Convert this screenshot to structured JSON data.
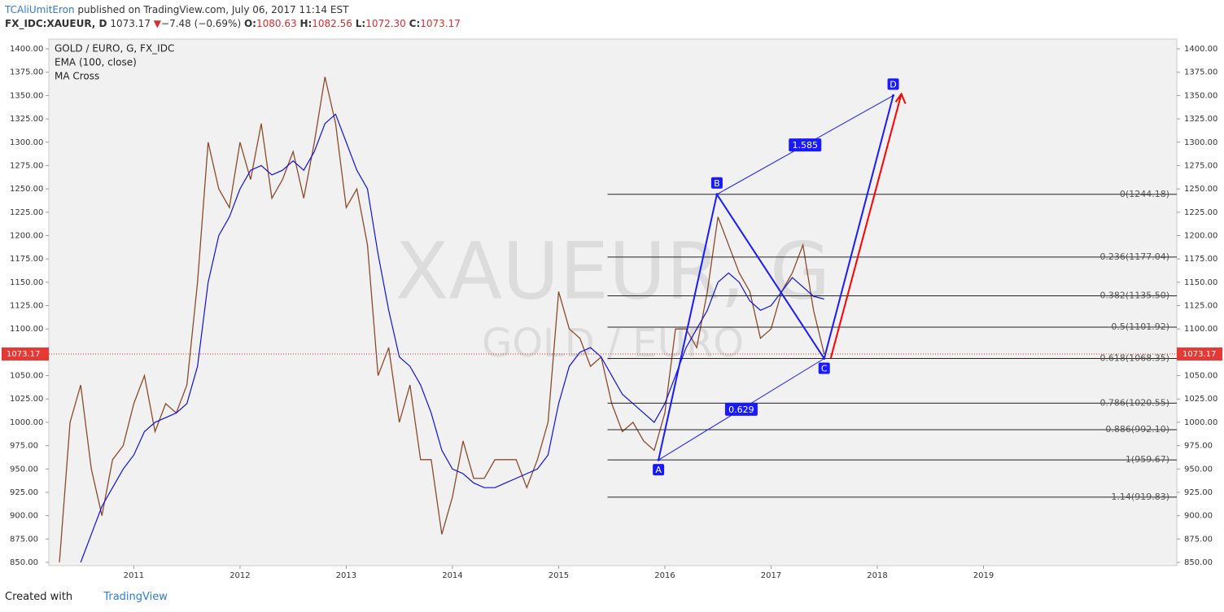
{
  "header": {
    "author": "TCAliUmitEron",
    "published": "published on TradingView.com, July 06, 2017 11:14 EST",
    "symbol": "FX_IDC:XAUEUR, D",
    "price": "1073.17",
    "change": "−7.48 (−0.69%)",
    "o_label": "O:",
    "o": "1080.63",
    "h_label": "H:",
    "h": "1082.56",
    "l_label": "L:",
    "l": "1072.30",
    "c_label": "C:",
    "c": "1073.17"
  },
  "footer": {
    "created": "Created with",
    "brand": "TradingView"
  },
  "chart_data": {
    "type": "line",
    "title": "GOLD / EURO, G, FX_IDC",
    "indicators": [
      "EMA (100, close)",
      "MA Cross"
    ],
    "watermark": [
      "XAUEUR, G",
      "GOLD / EURO"
    ],
    "x": [
      2010.3,
      2010.4,
      2010.5,
      2010.6,
      2010.7,
      2010.8,
      2010.9,
      2011.0,
      2011.1,
      2011.2,
      2011.3,
      2011.4,
      2011.5,
      2011.6,
      2011.7,
      2011.8,
      2011.9,
      2012.0,
      2012.1,
      2012.2,
      2012.3,
      2012.4,
      2012.5,
      2012.6,
      2012.7,
      2012.8,
      2012.9,
      2013.0,
      2013.1,
      2013.2,
      2013.3,
      2013.4,
      2013.5,
      2013.6,
      2013.7,
      2013.8,
      2013.9,
      2014.0,
      2014.1,
      2014.2,
      2014.3,
      2014.4,
      2014.5,
      2014.6,
      2014.7,
      2014.8,
      2014.9,
      2015.0,
      2015.1,
      2015.2,
      2015.3,
      2015.4,
      2015.5,
      2015.6,
      2015.7,
      2015.8,
      2015.9,
      2016.0,
      2016.1,
      2016.2,
      2016.3,
      2016.4,
      2016.5,
      2016.6,
      2016.7,
      2016.8,
      2016.9,
      2017.0,
      2017.1,
      2017.2,
      2017.3,
      2017.4,
      2017.5
    ],
    "price": {
      "color": "#8b4a2b",
      "values": [
        850,
        1000,
        1040,
        950,
        900,
        960,
        975,
        1020,
        1050,
        990,
        1020,
        1010,
        1040,
        1150,
        1300,
        1250,
        1230,
        1300,
        1260,
        1320,
        1240,
        1260,
        1290,
        1240,
        1300,
        1370,
        1320,
        1230,
        1250,
        1190,
        1050,
        1080,
        1000,
        1040,
        960,
        960,
        880,
        920,
        980,
        940,
        940,
        960,
        960,
        960,
        930,
        960,
        1000,
        1140,
        1100,
        1090,
        1060,
        1070,
        1020,
        990,
        1000,
        980,
        970,
        1010,
        1100,
        1100,
        1080,
        1140,
        1220,
        1190,
        1160,
        1140,
        1090,
        1100,
        1140,
        1160,
        1190,
        1120,
        1073.17
      ]
    },
    "ema": {
      "color": "#1010e0",
      "values": [
        null,
        null,
        850,
        880,
        910,
        930,
        950,
        965,
        990,
        1000,
        1005,
        1010,
        1020,
        1060,
        1150,
        1200,
        1220,
        1250,
        1270,
        1275,
        1265,
        1270,
        1280,
        1270,
        1290,
        1320,
        1330,
        1300,
        1270,
        1250,
        1180,
        1120,
        1070,
        1060,
        1040,
        1010,
        970,
        950,
        945,
        935,
        930,
        930,
        935,
        940,
        945,
        950,
        965,
        1020,
        1060,
        1075,
        1080,
        1070,
        1050,
        1030,
        1020,
        1010,
        1000,
        1020,
        1050,
        1080,
        1100,
        1120,
        1150,
        1160,
        1150,
        1130,
        1120,
        1125,
        1140,
        1155,
        1145,
        1135,
        1132
      ]
    },
    "last_price": 1073.17,
    "fib": {
      "x_start": 2015.46,
      "levels": [
        {
          "value": 1244.18,
          "label": "0(1244.18)"
        },
        {
          "value": 1177.04,
          "label": "0.236(1177.04)"
        },
        {
          "value": 1135.5,
          "label": "0.382(1135.50)"
        },
        {
          "value": 1101.92,
          "label": "0.5(1101.92)"
        },
        {
          "value": 1068.35,
          "label": "0.618(1068.35)"
        },
        {
          "value": 1020.55,
          "label": "0.786(1020.55)"
        },
        {
          "value": 992.1,
          "label": "0.886(992.10)"
        },
        {
          "value": 959.67,
          "label": "1(959.67)"
        },
        {
          "value": 919.83,
          "label": "1.14(919.83)"
        }
      ]
    },
    "points": [
      {
        "name": "A",
        "x": 2015.94,
        "y": 959.67
      },
      {
        "name": "B",
        "x": 2016.49,
        "y": 1244.18
      },
      {
        "name": "C",
        "x": 2017.5,
        "y": 1068.35
      },
      {
        "name": "D",
        "x": 2018.15,
        "y": 1350
      }
    ],
    "ratios": [
      1.585,
      0.629
    ],
    "xlim": [
      2010.2,
      2020.82
    ],
    "xticks": [
      2011,
      2012,
      2013,
      2014,
      2015,
      2016,
      2017,
      2018,
      2019
    ],
    "ylim": [
      846.5,
      1410.5
    ],
    "yticks": [
      {
        "value": 850,
        "label": "850.00"
      },
      {
        "value": 875,
        "label": "875.00"
      },
      {
        "value": 900,
        "label": "900.00"
      },
      {
        "value": 925,
        "label": "925.00"
      },
      {
        "value": 950,
        "label": "950.00"
      },
      {
        "value": 975,
        "label": "975.00"
      },
      {
        "value": 1000,
        "label": "1000.00"
      },
      {
        "value": 1025,
        "label": "1025.00"
      },
      {
        "value": 1050,
        "label": "1050.00"
      },
      {
        "value": 1075,
        "label": "1075.00"
      },
      {
        "value": 1100,
        "label": "1100.00"
      },
      {
        "value": 1125,
        "label": "1125.00"
      },
      {
        "value": 1150,
        "label": "1150.00"
      },
      {
        "value": 1175,
        "label": "1175.00"
      },
      {
        "value": 1200,
        "label": "1200.00"
      },
      {
        "value": 1225,
        "label": "1225.00"
      },
      {
        "value": 1250,
        "label": "1250.00"
      },
      {
        "value": 1275,
        "label": "1275.00"
      },
      {
        "value": 1300,
        "label": "1300.00"
      },
      {
        "value": 1325,
        "label": "1325.00"
      },
      {
        "value": 1350,
        "label": "1350.00"
      },
      {
        "value": 1375,
        "label": "1375.00"
      },
      {
        "value": 1400,
        "label": "1400.00"
      }
    ]
  }
}
